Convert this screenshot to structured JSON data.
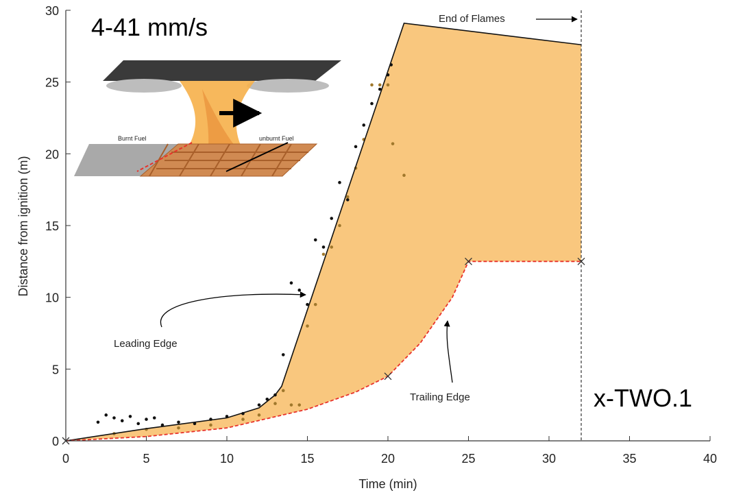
{
  "chart_data": {
    "type": "range-area",
    "xlabel": "Time (min)",
    "ylabel": "Distance from ignition (m)",
    "xlim": [
      0,
      40
    ],
    "ylim": [
      0,
      30
    ],
    "xticks": [
      0,
      5,
      10,
      15,
      20,
      25,
      30,
      35,
      40
    ],
    "yticks": [
      0,
      5,
      10,
      15,
      20,
      25,
      30
    ],
    "fill_color": "#f9c77e",
    "edges": [
      {
        "name": "Leading Edge",
        "color": "#111111",
        "dash": false,
        "x": [
          0,
          5,
          10,
          12,
          13,
          13.4,
          21,
          32
        ],
        "values": [
          0,
          0.85,
          1.6,
          2.3,
          3.2,
          3.8,
          29.1,
          27.6
        ]
      },
      {
        "name": "Trailing Edge",
        "color": "#e8312a",
        "dash": true,
        "x": [
          0,
          5,
          10,
          15,
          18,
          20,
          22,
          24,
          25,
          32
        ],
        "values": [
          0,
          0.3,
          0.9,
          2.2,
          3.4,
          4.5,
          6.8,
          10,
          12.5,
          12.5
        ]
      }
    ],
    "markers": {
      "x": [
        0,
        20,
        25,
        32
      ],
      "values": [
        0,
        4.5,
        12.5,
        12.5
      ]
    },
    "series": [
      {
        "color": "#111111",
        "x": [
          2,
          2.5,
          3,
          3.5,
          4,
          4.5,
          5,
          5.5,
          6,
          7,
          8,
          9,
          10,
          11,
          12,
          12.5,
          13,
          13.5,
          14,
          14.5,
          15,
          15.5,
          16,
          16.5,
          17,
          17.5,
          18,
          18.5,
          19,
          19.5,
          20,
          20.2
        ],
        "values": [
          1.3,
          1.8,
          1.6,
          1.4,
          1.7,
          1.2,
          1.5,
          1.6,
          1.1,
          1.3,
          1.2,
          1.5,
          1.7,
          1.9,
          2.5,
          2.9,
          3.2,
          6,
          11,
          10.5,
          9.5,
          14,
          13.5,
          15.5,
          18,
          16.8,
          20.5,
          22,
          23.5,
          24.5,
          25.5,
          26.2
        ]
      },
      {
        "color": "#a0782c",
        "x": [
          3,
          5,
          7,
          9,
          11,
          12,
          13,
          13.5,
          14,
          14.5,
          15,
          15.5,
          16,
          16.5,
          17,
          17.5,
          18,
          18.5,
          19,
          19.5,
          20,
          20.3,
          21
        ],
        "values": [
          0.5,
          0.8,
          0.9,
          1.1,
          1.5,
          1.8,
          2.6,
          3.5,
          2.5,
          2.5,
          8,
          9.5,
          13,
          13.5,
          15,
          17,
          19,
          21,
          24.8,
          24.8,
          24.8,
          20.7,
          18.5
        ]
      }
    ],
    "vline": {
      "x": 32,
      "label": "End of Flames"
    },
    "rate_label": "4-41 mm/s",
    "corner_label": "x-TWO.1",
    "inset": {
      "left_label": "Burnt Fuel",
      "right_label": "unburnt Fuel"
    }
  }
}
